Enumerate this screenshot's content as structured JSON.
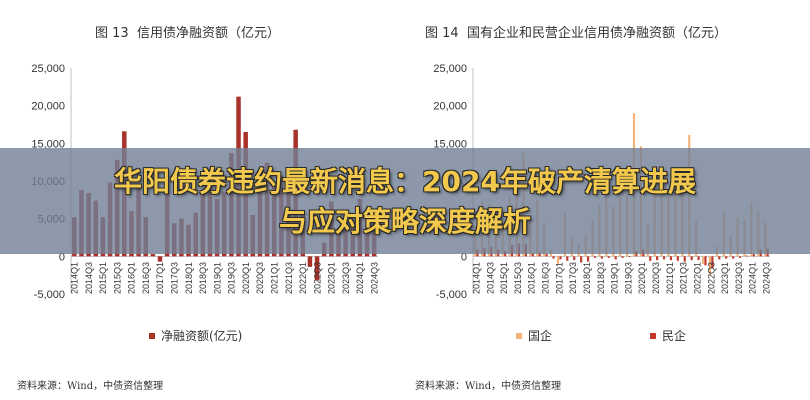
{
  "banner": {
    "line1": "华阳债券违约最新消息：2024年破产清算进展",
    "line2": "与应对策略深度解析"
  },
  "colors": {
    "red": "#a9322a",
    "soe": "#f2b27a",
    "pvt": "#c0392b",
    "axis": "#bfbfbf",
    "banner": "#708096",
    "headline": "#f2c94c"
  },
  "chart_data": [
    {
      "type": "bar",
      "figure_label": "图 13",
      "title": "信用债净融资额（亿元）",
      "source": "资料来源：Wind，中债资信整理",
      "y_ticks": [
        "25,000",
        "20,000",
        "15,000",
        "10,000",
        "5,000",
        "0",
        "-5,000"
      ],
      "ylim": [
        -5000,
        25000
      ],
      "categories": [
        "2014Q1",
        "2014Q2",
        "2014Q3",
        "2014Q4",
        "2015Q1",
        "2015Q2",
        "2015Q3",
        "2015Q4",
        "2016Q1",
        "2016Q2",
        "2016Q3",
        "2016Q4",
        "2017Q1",
        "2017Q2",
        "2017Q3",
        "2017Q4",
        "2018Q1",
        "2018Q2",
        "2018Q3",
        "2018Q4",
        "2019Q1",
        "2019Q2",
        "2019Q3",
        "2019Q4",
        "2020Q1",
        "2020Q2",
        "2020Q3",
        "2020Q4",
        "2021Q1",
        "2021Q2",
        "2021Q3",
        "2021Q4",
        "2022Q1",
        "2022Q2",
        "2022Q3",
        "2022Q4",
        "2023Q1",
        "2023Q2",
        "2023Q3",
        "2023Q4",
        "2024Q1",
        "2024Q2",
        "2024Q3"
      ],
      "x_tick_labels": [
        "2014Q1",
        "2014Q3",
        "2015Q1",
        "2015Q3",
        "2016Q1",
        "2016Q3",
        "2017Q1",
        "2017Q3",
        "2018Q1",
        "2018Q3",
        "2019Q1",
        "2019Q3",
        "2020Q1",
        "2020Q3",
        "2021Q1",
        "2021Q3",
        "2022Q1",
        "2022Q3",
        "2023Q1",
        "2023Q3",
        "2024Q1",
        "2024Q3"
      ],
      "series": [
        {
          "name": "净融资额(亿元)",
          "values": [
            5200,
            8800,
            8400,
            7400,
            5200,
            9800,
            12800,
            16600,
            6000,
            9100,
            5200,
            300,
            -700,
            10000,
            4400,
            5000,
            4200,
            5800,
            8300,
            9400,
            7600,
            8600,
            13700,
            21200,
            16500,
            5500,
            10700,
            12400,
            9900,
            10600,
            9700,
            16800,
            5600,
            -1400,
            -3200,
            1800,
            7300,
            3200,
            5500,
            4900,
            7600,
            6200,
            5200
          ]
        }
      ],
      "legend": [
        "净融资额(亿元)"
      ],
      "legend_position": "bottom",
      "grid": false
    },
    {
      "type": "bar",
      "figure_label": "图 14",
      "title": "国有企业和民营企业信用债净融资额（亿元）",
      "source": "资料来源：Wind，中债资信整理",
      "y_ticks": [
        "25,000",
        "20,000",
        "15,000",
        "10,000",
        "5,000",
        "0",
        "-5,000"
      ],
      "ylim": [
        -5000,
        25000
      ],
      "categories": [
        "2014Q1",
        "2014Q2",
        "2014Q3",
        "2014Q4",
        "2015Q1",
        "2015Q2",
        "2015Q3",
        "2015Q4",
        "2016Q1",
        "2016Q2",
        "2016Q3",
        "2016Q4",
        "2017Q1",
        "2017Q2",
        "2017Q3",
        "2017Q4",
        "2018Q1",
        "2018Q2",
        "2018Q3",
        "2018Q4",
        "2019Q1",
        "2019Q2",
        "2019Q3",
        "2019Q4",
        "2020Q1",
        "2020Q2",
        "2020Q3",
        "2020Q4",
        "2021Q1",
        "2021Q2",
        "2021Q3",
        "2021Q4",
        "2022Q1",
        "2022Q2",
        "2022Q3",
        "2022Q4",
        "2023Q1",
        "2023Q2",
        "2023Q3",
        "2023Q4",
        "2024Q1",
        "2024Q2",
        "2024Q3"
      ],
      "x_tick_labels": [
        "2014Q1",
        "2014Q3",
        "2015Q1",
        "2015Q3",
        "2016Q1",
        "2016Q3",
        "2017Q1",
        "2017Q3",
        "2018Q1",
        "2018Q3",
        "2019Q1",
        "2019Q3",
        "2020Q1",
        "2020Q3",
        "2021Q1",
        "2021Q3",
        "2022Q1",
        "2022Q3",
        "2023Q1",
        "2023Q3",
        "2024Q1",
        "2024Q3"
      ],
      "series": [
        {
          "name": "国企",
          "values": [
            4000,
            7200,
            6900,
            6200,
            4300,
            8100,
            10500,
            13700,
            5000,
            7500,
            4400,
            800,
            -1000,
            5800,
            2500,
            1600,
            3000,
            4700,
            6800,
            8200,
            6600,
            7700,
            11200,
            19000,
            14600,
            4300,
            8300,
            11100,
            8600,
            9300,
            8300,
            16100,
            4700,
            -1000,
            -2500,
            1300,
            6000,
            2800,
            5100,
            4800,
            7200,
            5900,
            4600
          ]
        },
        {
          "name": "民企",
          "values": [
            900,
            1100,
            1300,
            900,
            700,
            1500,
            1700,
            1600,
            400,
            500,
            300,
            -300,
            -400,
            -600,
            -500,
            -800,
            -700,
            -200,
            -300,
            -200,
            -400,
            -200,
            -100,
            700,
            900,
            -600,
            -500,
            -400,
            -500,
            -600,
            -700,
            -500,
            -500,
            -1200,
            -1600,
            -400,
            -300,
            -300,
            -200,
            100,
            300,
            900,
            1000
          ]
        }
      ],
      "legend": [
        "国企",
        "民企"
      ],
      "legend_position": "bottom",
      "grid": false
    }
  ]
}
